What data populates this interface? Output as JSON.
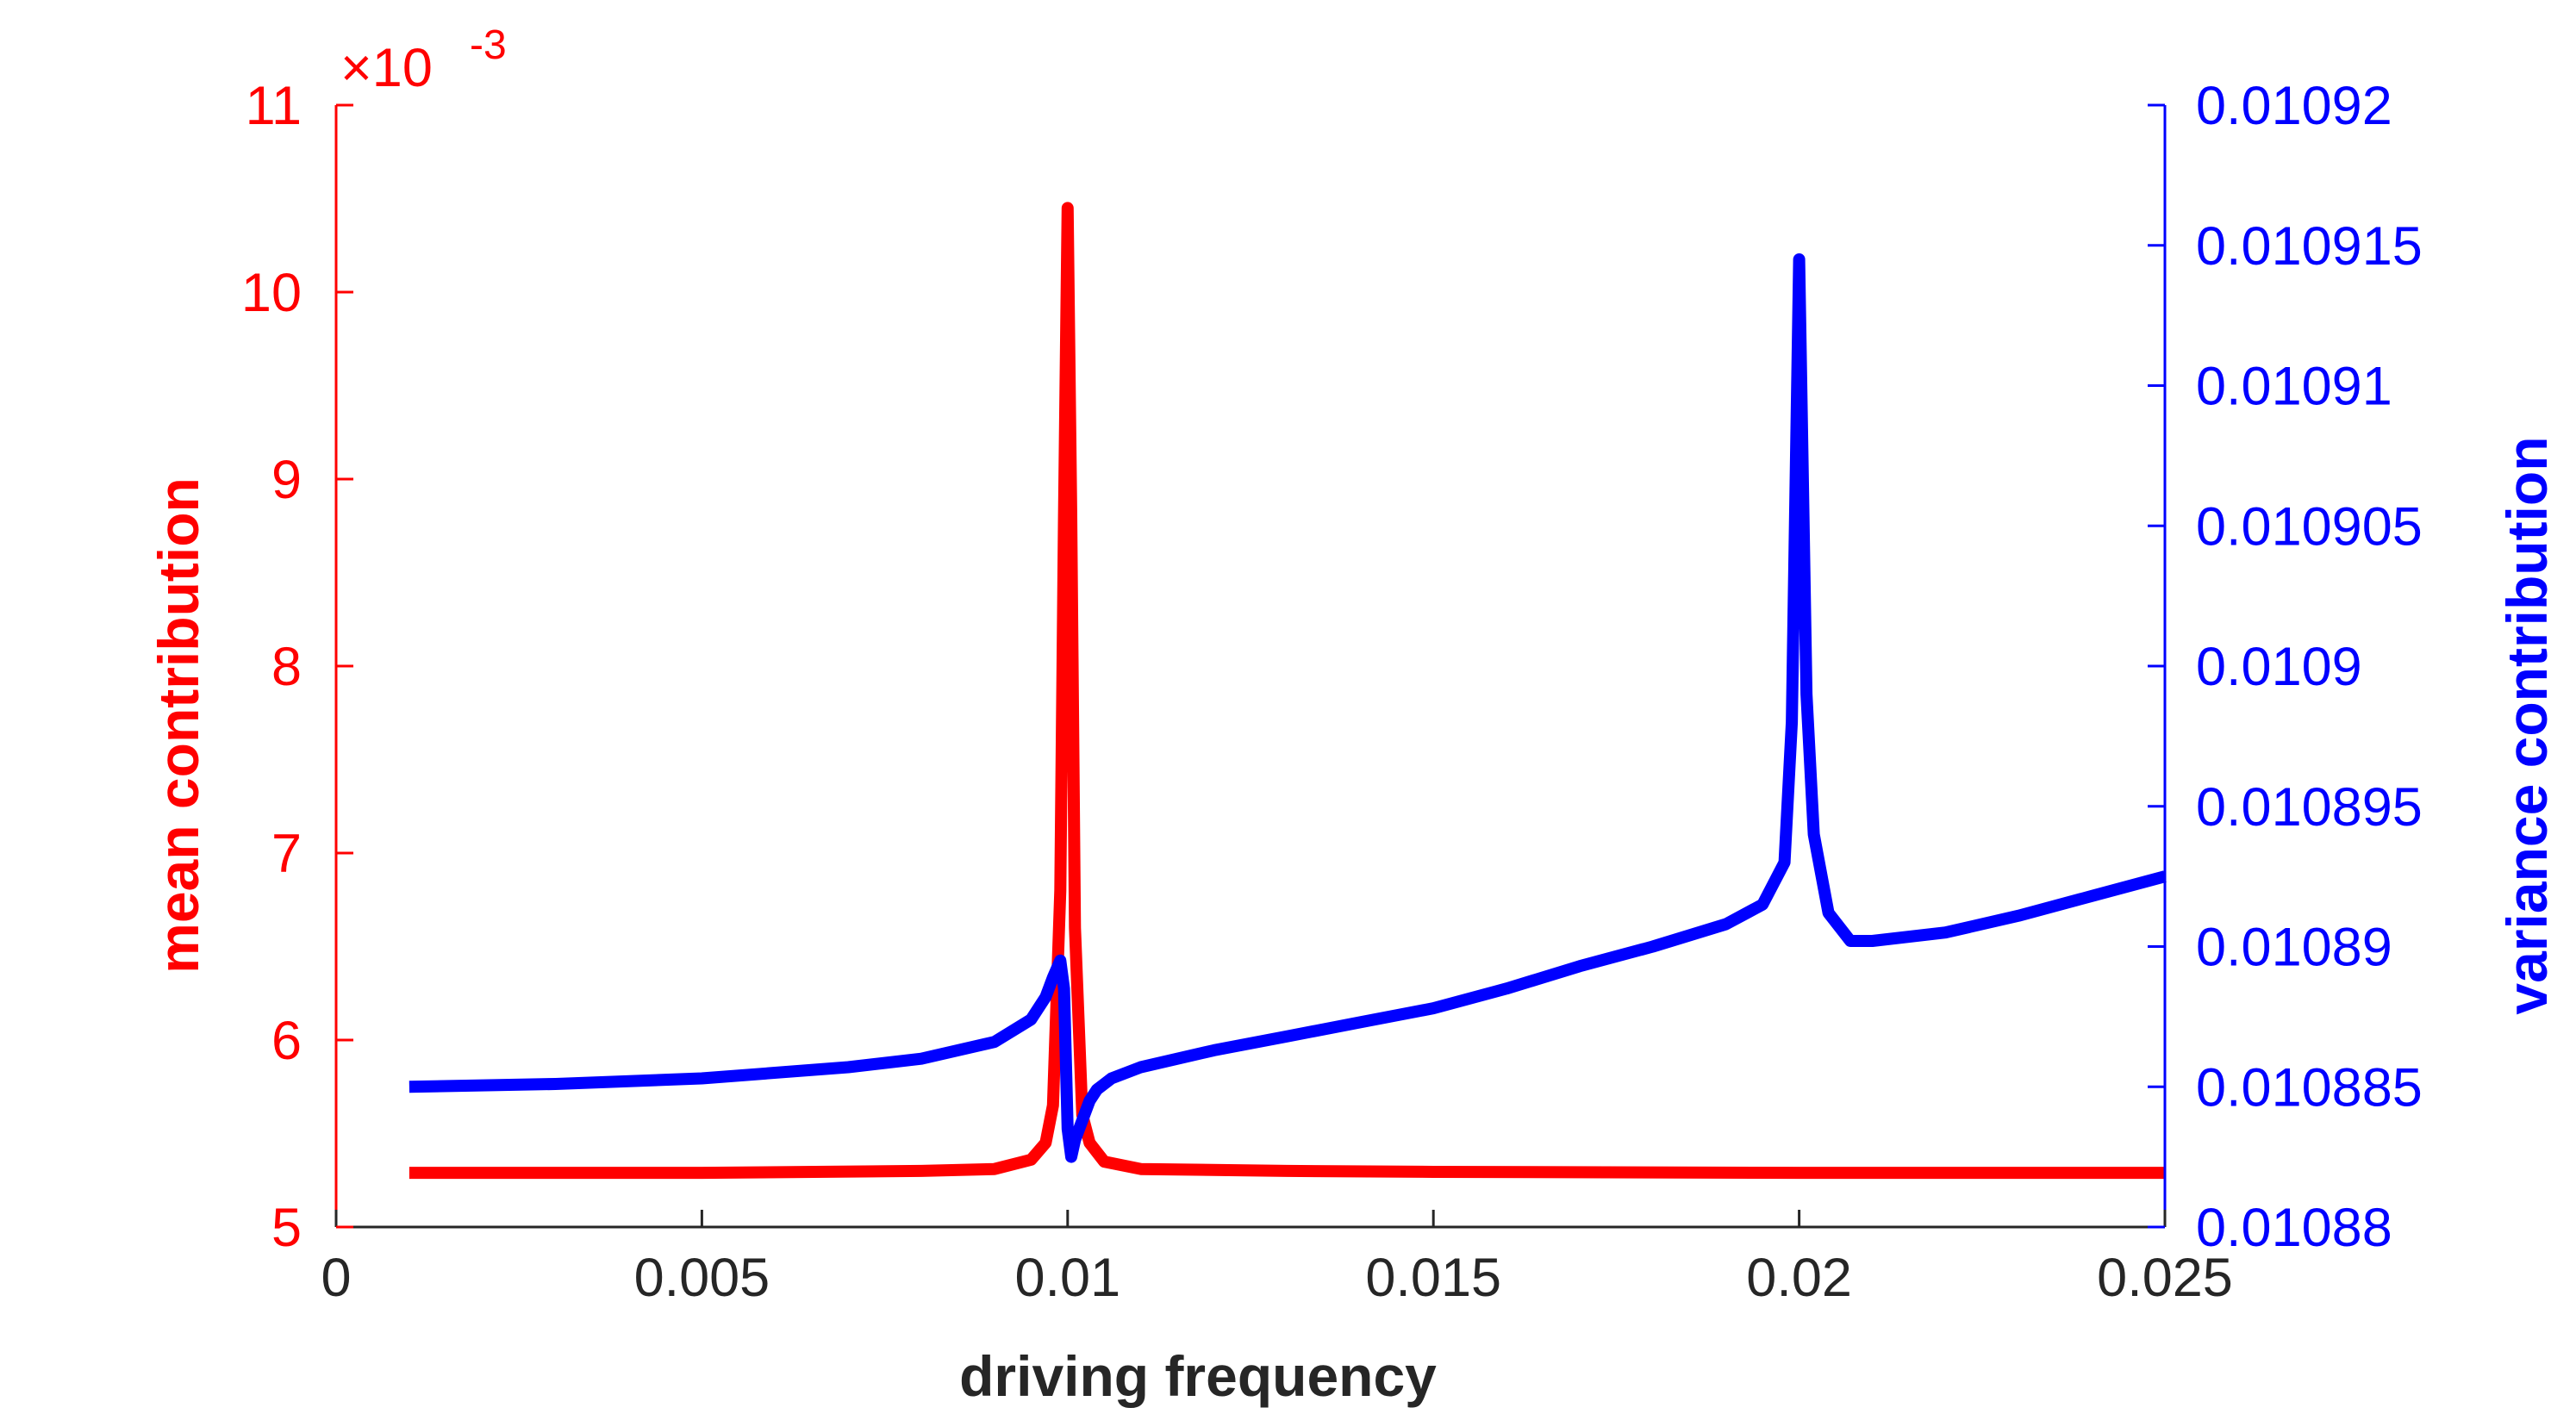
{
  "chart_data": {
    "type": "line",
    "xlabel": "driving frequency",
    "ylabel_left": "mean contribution",
    "ylabel_right": "variance contribution",
    "left_axis_exponent": "× 10^-3",
    "left_axis_exponent_base": "×10",
    "left_axis_exponent_power": "-3",
    "xlim": [
      0,
      0.025
    ],
    "ylim_left": [
      5,
      11
    ],
    "ylim_right": [
      0.01088,
      0.01092
    ],
    "x_ticks": [
      "0",
      "0.005",
      "0.01",
      "0.015",
      "0.02",
      "0.025"
    ],
    "left_ticks": [
      "5",
      "6",
      "7",
      "8",
      "9",
      "10",
      "11"
    ],
    "right_ticks": [
      "0.01088",
      "0.010885",
      "0.01089",
      "0.010895",
      "0.0109",
      "0.010905",
      "0.01091",
      "0.010915",
      "0.01092"
    ],
    "grid": false,
    "colors": {
      "left_axis": "#ff0000",
      "right_axis": "#0000ff",
      "x_axis": "#262626"
    },
    "series": [
      {
        "axis": "left",
        "color": "#ff0000",
        "x": [
          0.001,
          0.005,
          0.008,
          0.009,
          0.0095,
          0.0097,
          0.0098,
          0.0099,
          0.00995,
          0.01,
          0.01005,
          0.0101,
          0.0102,
          0.0103,
          0.0105,
          0.011,
          0.013,
          0.015,
          0.02,
          0.025
        ],
        "y": [
          5.29,
          5.29,
          5.3,
          5.31,
          5.36,
          5.45,
          5.65,
          6.8,
          8.8,
          10.45,
          8.8,
          6.6,
          5.6,
          5.45,
          5.35,
          5.31,
          5.3,
          5.295,
          5.29,
          5.29
        ]
      },
      {
        "axis": "right",
        "color": "#0000ff",
        "x": [
          0.001,
          0.003,
          0.005,
          0.007,
          0.008,
          0.009,
          0.0095,
          0.0097,
          0.0098,
          0.0099,
          0.00995,
          0.01,
          0.01005,
          0.0101,
          0.0102,
          0.0103,
          0.0104,
          0.0106,
          0.011,
          0.012,
          0.013,
          0.014,
          0.015,
          0.016,
          0.017,
          0.018,
          0.019,
          0.0195,
          0.0198,
          0.0199,
          0.02,
          0.0201,
          0.0202,
          0.0204,
          0.0207,
          0.021,
          0.022,
          0.023,
          0.024,
          0.025
        ],
        "y": [
          0.010885,
          0.0108851,
          0.0108853,
          0.0108857,
          0.010886,
          0.0108866,
          0.0108874,
          0.0108882,
          0.0108889,
          0.0108895,
          0.0108885,
          0.0108835,
          0.0108825,
          0.0108831,
          0.0108838,
          0.0108845,
          0.0108849,
          0.0108853,
          0.0108857,
          0.0108863,
          0.0108868,
          0.0108873,
          0.0108878,
          0.0108885,
          0.0108893,
          0.01089,
          0.0108908,
          0.0108915,
          0.010893,
          0.010898,
          0.0109145,
          0.010899,
          0.010894,
          0.0108912,
          0.0108902,
          0.0108902,
          0.0108905,
          0.0108911,
          0.0108918,
          0.0108925
        ]
      }
    ]
  }
}
